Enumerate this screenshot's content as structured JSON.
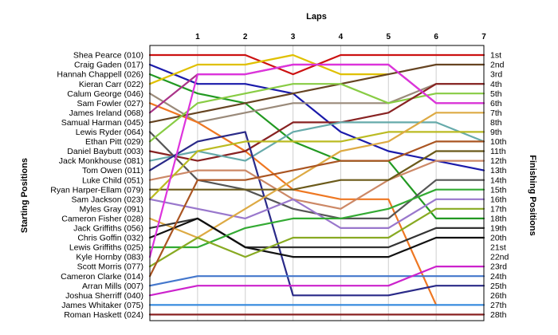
{
  "chart_data": {
    "type": "line",
    "title": "",
    "x_label": "Laps",
    "y_left_label": "Starting Positions",
    "y_right_label": "Finishing Positions",
    "x": [
      0,
      1,
      2,
      3,
      4,
      5,
      6,
      7
    ],
    "x_tick_labels": [
      "1",
      "2",
      "3",
      "4",
      "5",
      "6",
      "7"
    ],
    "y_range": [
      1,
      28
    ],
    "finishing_labels": [
      "1st",
      "2nd",
      "3rd",
      "4th",
      "5th",
      "6th",
      "7th",
      "8th",
      "9th",
      "10th",
      "11th",
      "12th",
      "13th",
      "14th",
      "15th",
      "16th",
      "17th",
      "18th",
      "19th",
      "20th",
      "21st",
      "22nd",
      "23rd",
      "24th",
      "25th",
      "26th",
      "27th",
      "28th"
    ],
    "series": [
      {
        "name": "Shea Pearce (010)",
        "color": "#cc1111",
        "positions": [
          1,
          1,
          1,
          3,
          1,
          1,
          1,
          1
        ]
      },
      {
        "name": "Craig Gaden (017)",
        "color": "#1a1aaa",
        "positions": [
          2,
          4,
          4,
          5,
          9,
          11,
          12,
          13
        ]
      },
      {
        "name": "Hannah Chappell (026)",
        "color": "#229922",
        "positions": [
          3,
          5,
          6,
          10,
          12,
          12,
          18,
          18
        ]
      },
      {
        "name": "Kieran Carr (022)",
        "color": "#e0c000",
        "positions": [
          4,
          2,
          2,
          1,
          3,
          3
        ]
      },
      {
        "name": "Calum George (046)",
        "color": "#9a8a7a",
        "positions": [
          5,
          8,
          7,
          6,
          6,
          6,
          4,
          4
        ]
      },
      {
        "name": "Sam Fowler (027)",
        "color": "#ee7722",
        "positions": [
          6,
          8,
          11,
          15,
          16,
          16,
          27
        ]
      },
      {
        "name": "James Ireland (068)",
        "color": "#aa3388",
        "positions": [
          7,
          3,
          3,
          2,
          2,
          2,
          6,
          6
        ]
      },
      {
        "name": "Samual Harman (045)",
        "color": "#664422",
        "positions": [
          8,
          7,
          6,
          5,
          4,
          3,
          2,
          2
        ]
      },
      {
        "name": "Lewis Ryder (064)",
        "color": "#555555",
        "positions": [
          9,
          14,
          15,
          17,
          18,
          18,
          14,
          14
        ]
      },
      {
        "name": "Ethan Pitt (029)",
        "color": "#88cc44",
        "positions": [
          10,
          6,
          5,
          4,
          4,
          6,
          5,
          5
        ]
      },
      {
        "name": "Daniel Baybutt (003)",
        "color": "#882222",
        "positions": [
          11,
          12,
          11,
          8,
          8,
          7,
          4,
          4
        ]
      },
      {
        "name": "Jack Monkhouse (081)",
        "color": "#66aaaa",
        "positions": [
          12,
          11,
          12,
          9,
          8,
          8,
          8,
          10
        ]
      },
      {
        "name": "Tom Owen (011)",
        "color": "#2a2a88",
        "positions": [
          13,
          10,
          9,
          26,
          26,
          26,
          25,
          25
        ]
      },
      {
        "name": "Luke Child (051)",
        "color": "#cc8866",
        "positions": [
          14,
          13,
          13,
          16,
          17,
          14,
          12,
          12
        ]
      },
      {
        "name": "Ryan Harper-Ellam (079)",
        "color": "#6b5a1a",
        "positions": [
          15,
          15,
          15,
          15,
          14,
          14,
          11,
          11
        ]
      },
      {
        "name": "Sam Jackson (023)",
        "color": "#bbbb22",
        "positions": [
          16,
          11,
          10,
          10,
          10,
          9,
          9,
          9
        ]
      },
      {
        "name": "Myles Gray (091)",
        "color": "#9977cc",
        "positions": [
          16,
          17,
          18,
          16,
          19,
          19,
          16,
          16
        ]
      },
      {
        "name": "Cameron Fisher (028)",
        "color": "#ddaa44",
        "positions": [
          18,
          20,
          17,
          14,
          11,
          10,
          7,
          7
        ]
      },
      {
        "name": "Jack Griffiths (056)",
        "color": "#333333",
        "positions": [
          19,
          18,
          21,
          21,
          21,
          21,
          19,
          19
        ]
      },
      {
        "name": "Chris Goffin (032)",
        "color": "#111111",
        "positions": [
          20,
          18,
          21,
          22,
          22,
          22,
          20,
          20
        ]
      },
      {
        "name": "Lewis Griffiths (025)",
        "color": "#33aa33",
        "positions": [
          21,
          21,
          19,
          18,
          18,
          17,
          15,
          15
        ]
      },
      {
        "name": "Kyle Hornby (083)",
        "color": "#dd33dd",
        "positions": [
          22,
          3,
          3,
          2,
          2,
          2,
          6,
          6
        ]
      },
      {
        "name": "Scott Morris (077)",
        "color": "#88aa22",
        "positions": [
          23,
          20,
          22,
          20,
          20,
          20,
          17,
          17
        ]
      },
      {
        "name": "Cameron Clarke (014)",
        "color": "#aa5522",
        "positions": [
          24,
          14,
          14,
          13,
          12,
          12,
          10,
          10
        ]
      },
      {
        "name": "Arran Mills (007)",
        "color": "#4477cc",
        "positions": [
          25,
          24,
          24,
          24,
          24,
          24,
          24,
          24
        ]
      },
      {
        "name": "Joshua Sherriff (040)",
        "color": "#cc22cc",
        "positions": [
          26,
          25,
          25,
          25,
          25,
          25,
          23,
          23
        ]
      },
      {
        "name": "James Whitaker (075)",
        "color": "#3388dd",
        "positions": [
          27,
          27,
          27,
          27,
          27,
          27,
          27,
          27
        ]
      },
      {
        "name": "Roman Haskett (024)",
        "color": "#8a2222",
        "positions": [
          28,
          28,
          28,
          28,
          28,
          28,
          28,
          28
        ]
      }
    ]
  }
}
